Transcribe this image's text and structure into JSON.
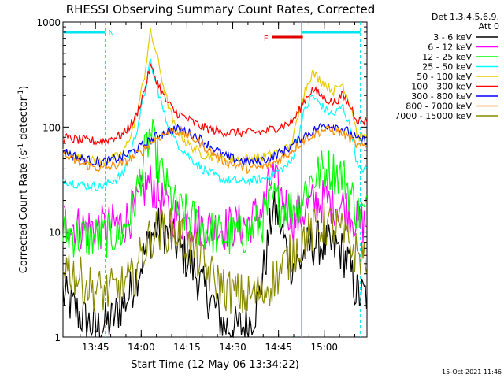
{
  "chart_data": {
    "type": "line",
    "title": "RHESSI Observing Summary Count Rates, Corrected",
    "xlabel": "Start Time (12-May-06 13:34:22)",
    "ylabel_main": "Corrected Count Rate (s",
    "ylabel_sup1": "-1",
    "ylabel_mid": " detector",
    "ylabel_sup2": "-1",
    "ylabel_end": ")",
    "y_scale": "log",
    "ylim": [
      1,
      1000
    ],
    "xlim": [
      "13:34:22",
      "15:14"
    ],
    "y_ticks": [
      "1",
      "10",
      "100",
      "1000"
    ],
    "x_ticks": [
      "13:45",
      "14:00",
      "14:15",
      "14:30",
      "14:45",
      "15:00"
    ],
    "legend_header": [
      "Det 1,3,4,5,6,9,",
      "Att 0"
    ],
    "legend_position": "right",
    "annotations": {
      "night_label": "N",
      "flare_label": "F",
      "timestamp": "15-Oct-2021 11:46"
    },
    "colors": {
      "background": "#ffffff",
      "axes": "#000000",
      "night_bar": "#00e5ee",
      "flare_bar": "#e00000"
    },
    "series": [
      {
        "name": "3 - 6 keV",
        "color": "#000000",
        "points": [
          [
            "13:34",
            2.6
          ],
          [
            "13:40",
            1.6
          ],
          [
            "13:45",
            1.2
          ],
          [
            "13:50",
            1.4
          ],
          [
            "13:56",
            2.5
          ],
          [
            "14:00",
            5
          ],
          [
            "14:03",
            9
          ],
          [
            "14:05",
            11
          ],
          [
            "14:08",
            10
          ],
          [
            "14:11",
            8
          ],
          [
            "14:14",
            6
          ],
          [
            "14:17",
            4.5
          ],
          [
            "14:20",
            3
          ],
          [
            "14:24",
            2
          ],
          [
            "14:27",
            1.3
          ],
          [
            "14:30",
            1.2
          ],
          [
            "14:35",
            1.3
          ],
          [
            "14:38",
            2
          ],
          [
            "14:41",
            6
          ],
          [
            "14:43",
            16
          ],
          [
            "14:45",
            14
          ],
          [
            "14:47",
            8
          ],
          [
            "14:49",
            5
          ],
          [
            "14:52",
            5
          ],
          [
            "14:54",
            7
          ],
          [
            "14:58",
            8
          ],
          [
            "15:02",
            7
          ],
          [
            "15:05",
            7
          ],
          [
            "15:08",
            5
          ],
          [
            "15:10",
            3
          ],
          [
            "15:11",
            2.5
          ]
        ]
      },
      {
        "name": "6 - 12 keV",
        "color": "#ff00ff",
        "points": [
          [
            "13:34",
            13
          ],
          [
            "13:40",
            11
          ],
          [
            "13:47",
            11
          ],
          [
            "13:54",
            12
          ],
          [
            "13:58",
            16
          ],
          [
            "14:02",
            30
          ],
          [
            "14:04",
            27
          ],
          [
            "14:07",
            19
          ],
          [
            "14:10",
            15
          ],
          [
            "14:13",
            13
          ],
          [
            "14:17",
            12
          ],
          [
            "14:22",
            11
          ],
          [
            "14:28",
            11
          ],
          [
            "14:35",
            12
          ],
          [
            "14:40",
            17
          ],
          [
            "14:43",
            35
          ],
          [
            "14:45",
            24
          ],
          [
            "14:48",
            17
          ],
          [
            "14:50",
            13
          ],
          [
            "14:52",
            14
          ],
          [
            "14:55",
            18
          ],
          [
            "15:00",
            20
          ],
          [
            "15:03",
            19
          ],
          [
            "15:06",
            18
          ],
          [
            "15:09",
            15
          ],
          [
            "15:11",
            12
          ]
        ]
      },
      {
        "name": "12 - 25 keV",
        "color": "#00ff00",
        "points": [
          [
            "13:34",
            10
          ],
          [
            "13:40",
            9
          ],
          [
            "13:47",
            9
          ],
          [
            "13:54",
            10
          ],
          [
            "13:58",
            20
          ],
          [
            "14:01",
            50
          ],
          [
            "14:03",
            90
          ],
          [
            "14:06",
            40
          ],
          [
            "14:09",
            23
          ],
          [
            "14:12",
            16
          ],
          [
            "14:17",
            13
          ],
          [
            "14:22",
            10
          ],
          [
            "14:28",
            9
          ],
          [
            "14:35",
            10
          ],
          [
            "14:40",
            13
          ],
          [
            "14:43",
            20
          ],
          [
            "14:46",
            18
          ],
          [
            "14:49",
            17
          ],
          [
            "14:52",
            20
          ],
          [
            "14:55",
            30
          ],
          [
            "15:00",
            40
          ],
          [
            "15:03",
            38
          ],
          [
            "15:06",
            35
          ],
          [
            "15:09",
            22
          ],
          [
            "15:11",
            15
          ]
        ]
      },
      {
        "name": "25 - 50 keV",
        "color": "#00ffff",
        "points": [
          [
            "13:34",
            32
          ],
          [
            "13:40",
            28
          ],
          [
            "13:47",
            27
          ],
          [
            "13:54",
            35
          ],
          [
            "13:58",
            80
          ],
          [
            "14:01",
            200
          ],
          [
            "14:03",
            420
          ],
          [
            "14:05",
            250
          ],
          [
            "14:08",
            120
          ],
          [
            "14:11",
            75
          ],
          [
            "14:15",
            55
          ],
          [
            "14:20",
            40
          ],
          [
            "14:26",
            32
          ],
          [
            "14:33",
            30
          ],
          [
            "14:40",
            32
          ],
          [
            "14:45",
            38
          ],
          [
            "14:49",
            45
          ],
          [
            "14:51",
            70
          ],
          [
            "14:53",
            130
          ],
          [
            "14:56",
            200
          ],
          [
            "15:00",
            150
          ],
          [
            "15:03",
            130
          ],
          [
            "15:06",
            160
          ],
          [
            "15:09",
            90
          ],
          [
            "15:11",
            40
          ]
        ]
      },
      {
        "name": "50 - 100 keV",
        "color": "#e6cc00",
        "points": [
          [
            "13:34",
            60
          ],
          [
            "13:40",
            50
          ],
          [
            "13:47",
            46
          ],
          [
            "13:54",
            55
          ],
          [
            "13:58",
            110
          ],
          [
            "14:01",
            300
          ],
          [
            "14:03",
            800
          ],
          [
            "14:05",
            500
          ],
          [
            "14:08",
            200
          ],
          [
            "14:11",
            100
          ],
          [
            "14:15",
            70
          ],
          [
            "14:20",
            55
          ],
          [
            "14:26",
            50
          ],
          [
            "14:33",
            50
          ],
          [
            "14:40",
            52
          ],
          [
            "14:45",
            58
          ],
          [
            "14:49",
            65
          ],
          [
            "14:51",
            110
          ],
          [
            "14:53",
            200
          ],
          [
            "14:56",
            330
          ],
          [
            "15:00",
            260
          ],
          [
            "15:03",
            220
          ],
          [
            "15:06",
            260
          ],
          [
            "15:09",
            150
          ],
          [
            "15:11",
            80
          ]
        ]
      },
      {
        "name": "100 - 300 keV",
        "color": "#ff0000",
        "points": [
          [
            "13:34",
            80
          ],
          [
            "13:40",
            75
          ],
          [
            "13:47",
            73
          ],
          [
            "13:54",
            85
          ],
          [
            "13:58",
            120
          ],
          [
            "14:01",
            220
          ],
          [
            "14:03",
            380
          ],
          [
            "14:05",
            280
          ],
          [
            "14:08",
            180
          ],
          [
            "14:11",
            140
          ],
          [
            "14:15",
            120
          ],
          [
            "14:20",
            100
          ],
          [
            "14:26",
            90
          ],
          [
            "14:33",
            88
          ],
          [
            "14:40",
            90
          ],
          [
            "14:45",
            100
          ],
          [
            "14:49",
            110
          ],
          [
            "14:51",
            130
          ],
          [
            "14:53",
            170
          ],
          [
            "14:56",
            230
          ],
          [
            "15:00",
            190
          ],
          [
            "15:03",
            170
          ],
          [
            "15:06",
            200
          ],
          [
            "15:09",
            150
          ],
          [
            "15:11",
            115
          ]
        ]
      },
      {
        "name": "300 - 800 keV",
        "color": "#0000ff",
        "points": [
          [
            "13:34",
            60
          ],
          [
            "13:40",
            50
          ],
          [
            "13:47",
            46
          ],
          [
            "13:54",
            52
          ],
          [
            "14:00",
            65
          ],
          [
            "14:05",
            82
          ],
          [
            "14:10",
            95
          ],
          [
            "14:13",
            95
          ],
          [
            "14:18",
            82
          ],
          [
            "14:23",
            65
          ],
          [
            "14:28",
            52
          ],
          [
            "14:35",
            46
          ],
          [
            "14:42",
            50
          ],
          [
            "14:48",
            62
          ],
          [
            "14:54",
            85
          ],
          [
            "15:00",
            105
          ],
          [
            "15:04",
            102
          ],
          [
            "15:08",
            90
          ],
          [
            "15:11",
            75
          ]
        ]
      },
      {
        "name": "800 - 7000 keV",
        "color": "#ff8c00",
        "points": [
          [
            "13:34",
            55
          ],
          [
            "13:40",
            45
          ],
          [
            "13:47",
            40
          ],
          [
            "13:54",
            45
          ],
          [
            "14:00",
            58
          ],
          [
            "14:05",
            78
          ],
          [
            "14:10",
            93
          ],
          [
            "14:13",
            90
          ],
          [
            "14:18",
            75
          ],
          [
            "14:23",
            58
          ],
          [
            "14:28",
            46
          ],
          [
            "14:35",
            40
          ],
          [
            "14:42",
            43
          ],
          [
            "14:48",
            55
          ],
          [
            "14:54",
            78
          ],
          [
            "15:00",
            95
          ],
          [
            "15:04",
            92
          ],
          [
            "15:08",
            80
          ],
          [
            "15:11",
            65
          ]
        ]
      },
      {
        "name": "7000 - 15000 keV",
        "color": "#8b8b00",
        "points": [
          [
            "13:34",
            5.5
          ],
          [
            "13:38",
            4
          ],
          [
            "13:43",
            3
          ],
          [
            "13:47",
            2.7
          ],
          [
            "13:52",
            2.8
          ],
          [
            "13:57",
            3.5
          ],
          [
            "14:00",
            6
          ],
          [
            "14:03",
            9
          ],
          [
            "14:07",
            11
          ],
          [
            "14:11",
            10
          ],
          [
            "14:15",
            8
          ],
          [
            "14:19",
            5.5
          ],
          [
            "14:23",
            3.8
          ],
          [
            "14:28",
            2.8
          ],
          [
            "14:34",
            2.4
          ],
          [
            "14:40",
            2.7
          ],
          [
            "14:45",
            4
          ],
          [
            "14:49",
            6
          ],
          [
            "14:54",
            9
          ],
          [
            "15:00",
            12
          ],
          [
            "15:04",
            11
          ],
          [
            "15:08",
            8
          ],
          [
            "15:11",
            6
          ]
        ]
      }
    ],
    "night_intervals": [
      [
        "13:34:22",
        "13:48:10"
      ],
      [
        "14:52:30",
        "15:11:50"
      ]
    ],
    "flare_interval": [
      "14:43",
      "14:53"
    ]
  }
}
